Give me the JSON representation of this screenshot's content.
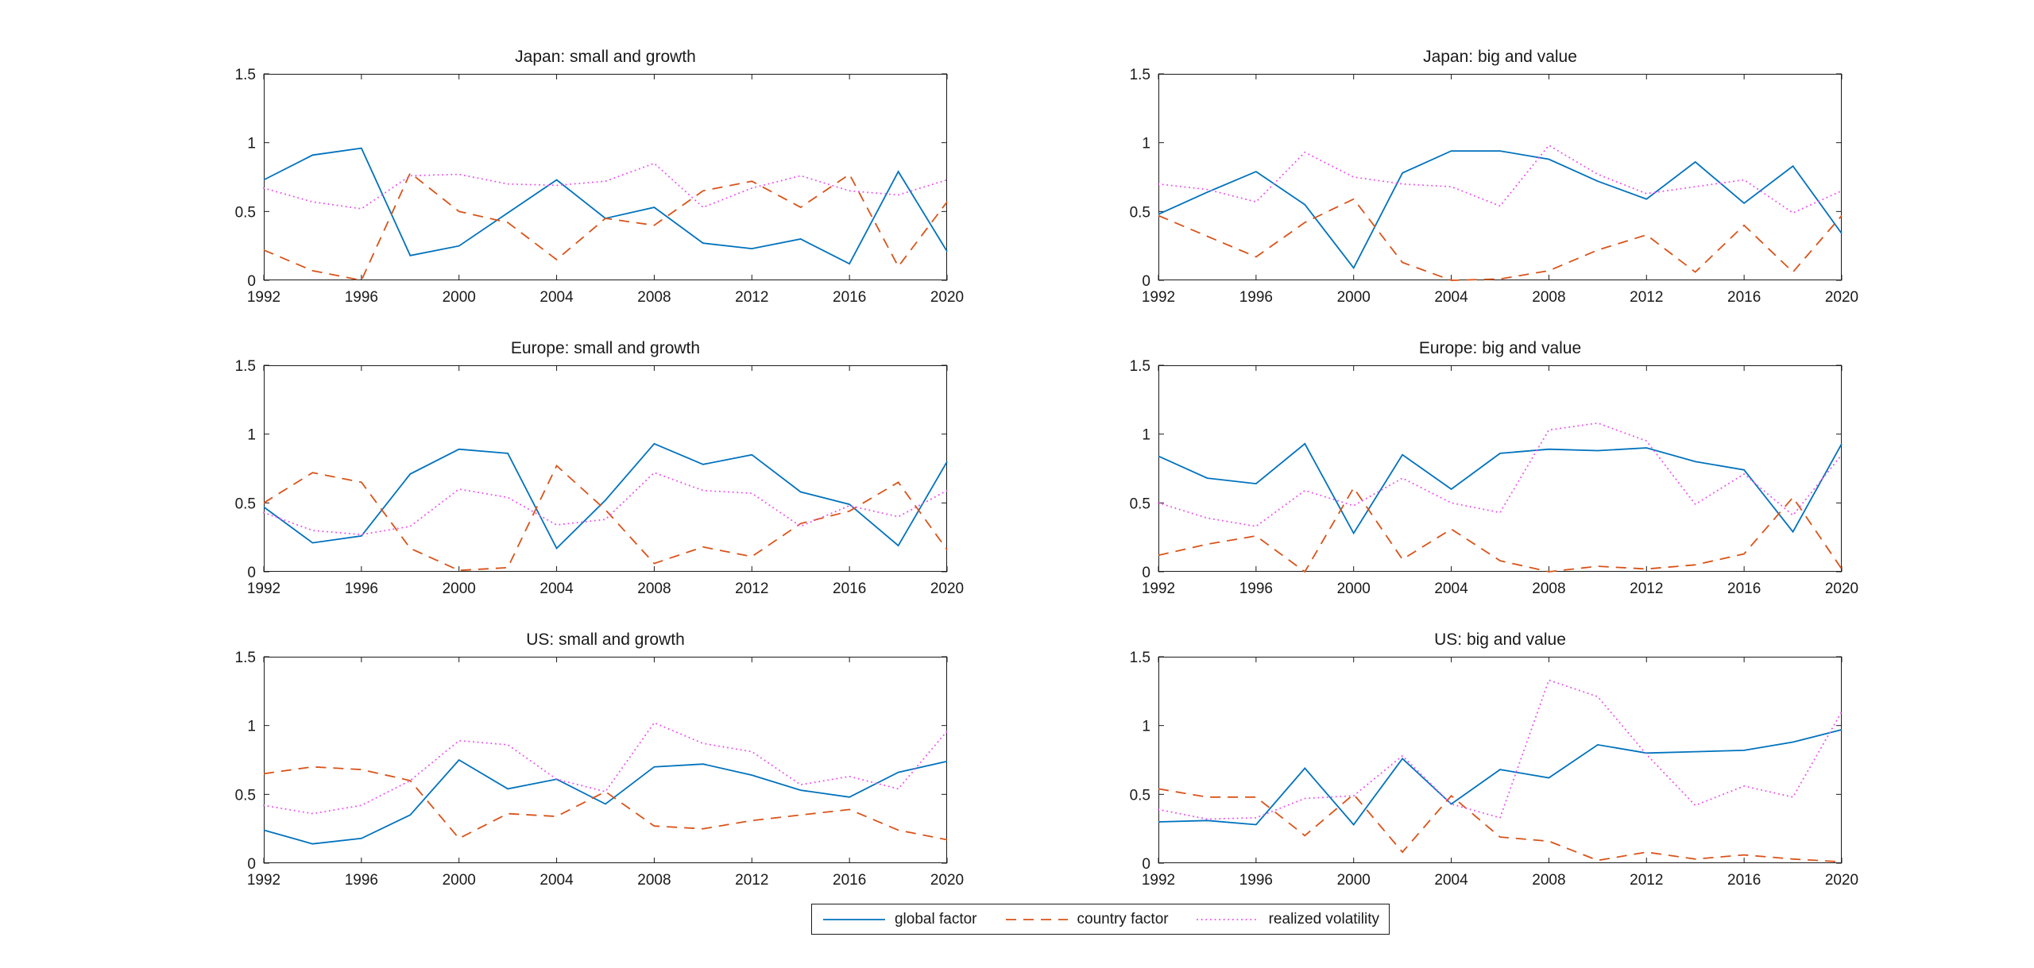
{
  "figure": {
    "background": "#ffffff",
    "axis_color": "#1a1a1a",
    "legend": {
      "items": [
        {
          "label": "global factor",
          "color": "#0072BD",
          "style": "solid"
        },
        {
          "label": "country factor",
          "color": "#D95319",
          "style": "dashed"
        },
        {
          "label": "realized volatility",
          "color": "#EE55EE",
          "style": "dotted"
        }
      ]
    }
  },
  "chart_data": [
    {
      "type": "line",
      "title": "Japan: small and growth",
      "x": [
        1992,
        1994,
        1996,
        1998,
        2000,
        2002,
        2004,
        2006,
        2008,
        2010,
        2012,
        2014,
        2016,
        2018,
        2020
      ],
      "xtick_labels": [
        "1992",
        "1996",
        "2000",
        "2004",
        "2008",
        "2012",
        "2016",
        "2020"
      ],
      "xticks": [
        1992,
        1996,
        2000,
        2004,
        2008,
        2012,
        2016,
        2020
      ],
      "ytick_labels": [
        "0",
        "0.5",
        "1",
        "1.5"
      ],
      "yticks": [
        0,
        0.5,
        1,
        1.5
      ],
      "xlim": [
        1992,
        2020
      ],
      "ylim": [
        0,
        1.5
      ],
      "grid": false,
      "series": [
        {
          "name": "global factor",
          "color": "#0072BD",
          "style": "solid",
          "values": [
            0.73,
            0.91,
            0.96,
            0.18,
            0.25,
            0.49,
            0.73,
            0.45,
            0.53,
            0.27,
            0.23,
            0.3,
            0.12,
            0.79,
            0.21
          ]
        },
        {
          "name": "country factor",
          "color": "#D95319",
          "style": "dashed",
          "values": [
            0.22,
            0.07,
            0.0,
            0.78,
            0.5,
            0.42,
            0.15,
            0.45,
            0.4,
            0.65,
            0.72,
            0.53,
            0.77,
            0.1,
            0.57
          ]
        },
        {
          "name": "realized volatility",
          "color": "#EE55EE",
          "style": "dotted",
          "values": [
            0.67,
            0.57,
            0.52,
            0.76,
            0.77,
            0.7,
            0.69,
            0.72,
            0.85,
            0.53,
            0.67,
            0.76,
            0.65,
            0.62,
            0.73
          ]
        }
      ]
    },
    {
      "type": "line",
      "title": "Japan: big and value",
      "x": [
        1992,
        1994,
        1996,
        1998,
        2000,
        2002,
        2004,
        2006,
        2008,
        2010,
        2012,
        2014,
        2016,
        2018,
        2020
      ],
      "xtick_labels": [
        "1992",
        "1996",
        "2000",
        "2004",
        "2008",
        "2012",
        "2016",
        "2020"
      ],
      "xticks": [
        1992,
        1996,
        2000,
        2004,
        2008,
        2012,
        2016,
        2020
      ],
      "ytick_labels": [
        "0",
        "0.5",
        "1",
        "1.5"
      ],
      "yticks": [
        0,
        0.5,
        1,
        1.5
      ],
      "xlim": [
        1992,
        2020
      ],
      "ylim": [
        0,
        1.5
      ],
      "grid": false,
      "series": [
        {
          "name": "global factor",
          "color": "#0072BD",
          "style": "solid",
          "values": [
            0.48,
            0.64,
            0.79,
            0.55,
            0.09,
            0.78,
            0.94,
            0.94,
            0.88,
            0.72,
            0.59,
            0.86,
            0.56,
            0.83,
            0.34
          ]
        },
        {
          "name": "country factor",
          "color": "#D95319",
          "style": "dashed",
          "values": [
            0.47,
            0.32,
            0.17,
            0.42,
            0.59,
            0.13,
            0.0,
            0.01,
            0.07,
            0.22,
            0.33,
            0.06,
            0.4,
            0.06,
            0.47
          ]
        },
        {
          "name": "realized volatility",
          "color": "#EE55EE",
          "style": "dotted",
          "values": [
            0.7,
            0.66,
            0.57,
            0.93,
            0.75,
            0.7,
            0.68,
            0.54,
            0.98,
            0.77,
            0.63,
            0.68,
            0.73,
            0.49,
            0.65
          ]
        }
      ]
    },
    {
      "type": "line",
      "title": "Europe: small and growth",
      "x": [
        1992,
        1994,
        1996,
        1998,
        2000,
        2002,
        2004,
        2006,
        2008,
        2010,
        2012,
        2014,
        2016,
        2018,
        2020
      ],
      "xtick_labels": [
        "1992",
        "1996",
        "2000",
        "2004",
        "2008",
        "2012",
        "2016",
        "2020"
      ],
      "xticks": [
        1992,
        1996,
        2000,
        2004,
        2008,
        2012,
        2016,
        2020
      ],
      "ytick_labels": [
        "0",
        "0.5",
        "1",
        "1.5"
      ],
      "yticks": [
        0,
        0.5,
        1,
        1.5
      ],
      "xlim": [
        1992,
        2020
      ],
      "ylim": [
        0,
        1.5
      ],
      "grid": false,
      "series": [
        {
          "name": "global factor",
          "color": "#0072BD",
          "style": "solid",
          "values": [
            0.47,
            0.21,
            0.26,
            0.71,
            0.89,
            0.86,
            0.17,
            0.52,
            0.93,
            0.78,
            0.85,
            0.58,
            0.49,
            0.19,
            0.8
          ]
        },
        {
          "name": "country factor",
          "color": "#D95319",
          "style": "dashed",
          "values": [
            0.5,
            0.72,
            0.65,
            0.17,
            0.01,
            0.03,
            0.77,
            0.45,
            0.06,
            0.18,
            0.11,
            0.35,
            0.44,
            0.65,
            0.16
          ]
        },
        {
          "name": "realized volatility",
          "color": "#EE55EE",
          "style": "dotted",
          "values": [
            0.43,
            0.3,
            0.27,
            0.33,
            0.6,
            0.54,
            0.34,
            0.38,
            0.72,
            0.59,
            0.57,
            0.33,
            0.48,
            0.4,
            0.59
          ]
        }
      ]
    },
    {
      "type": "line",
      "title": "Europe: big and value",
      "x": [
        1992,
        1994,
        1996,
        1998,
        2000,
        2002,
        2004,
        2006,
        2008,
        2010,
        2012,
        2014,
        2016,
        2018,
        2020
      ],
      "xtick_labels": [
        "1992",
        "1996",
        "2000",
        "2004",
        "2008",
        "2012",
        "2016",
        "2020"
      ],
      "xticks": [
        1992,
        1996,
        2000,
        2004,
        2008,
        2012,
        2016,
        2020
      ],
      "ytick_labels": [
        "0",
        "0.5",
        "1",
        "1.5"
      ],
      "yticks": [
        0,
        0.5,
        1,
        1.5
      ],
      "xlim": [
        1992,
        2020
      ],
      "ylim": [
        0,
        1.5
      ],
      "grid": false,
      "series": [
        {
          "name": "global factor",
          "color": "#0072BD",
          "style": "solid",
          "values": [
            0.84,
            0.68,
            0.64,
            0.93,
            0.28,
            0.85,
            0.6,
            0.86,
            0.89,
            0.88,
            0.9,
            0.8,
            0.74,
            0.29,
            0.93
          ]
        },
        {
          "name": "country factor",
          "color": "#D95319",
          "style": "dashed",
          "values": [
            0.12,
            0.2,
            0.26,
            0.0,
            0.61,
            0.09,
            0.31,
            0.08,
            0.0,
            0.04,
            0.02,
            0.05,
            0.13,
            0.54,
            0.02
          ]
        },
        {
          "name": "realized volatility",
          "color": "#EE55EE",
          "style": "dotted",
          "values": [
            0.5,
            0.39,
            0.33,
            0.59,
            0.48,
            0.68,
            0.5,
            0.43,
            1.03,
            1.08,
            0.95,
            0.49,
            0.71,
            0.41,
            0.85
          ]
        }
      ]
    },
    {
      "type": "line",
      "title": "US: small and growth",
      "x": [
        1992,
        1994,
        1996,
        1998,
        2000,
        2002,
        2004,
        2006,
        2008,
        2010,
        2012,
        2014,
        2016,
        2018,
        2020
      ],
      "xtick_labels": [
        "1992",
        "1996",
        "2000",
        "2004",
        "2008",
        "2012",
        "2016",
        "2020"
      ],
      "xticks": [
        1992,
        1996,
        2000,
        2004,
        2008,
        2012,
        2016,
        2020
      ],
      "ytick_labels": [
        "0",
        "0.5",
        "1",
        "1.5"
      ],
      "yticks": [
        0,
        0.5,
        1,
        1.5
      ],
      "xlim": [
        1992,
        2020
      ],
      "ylim": [
        0,
        1.5
      ],
      "grid": false,
      "series": [
        {
          "name": "global factor",
          "color": "#0072BD",
          "style": "solid",
          "values": [
            0.24,
            0.14,
            0.18,
            0.35,
            0.75,
            0.54,
            0.61,
            0.43,
            0.7,
            0.72,
            0.64,
            0.53,
            0.48,
            0.66,
            0.74
          ]
        },
        {
          "name": "country factor",
          "color": "#D95319",
          "style": "dashed",
          "values": [
            0.65,
            0.7,
            0.68,
            0.6,
            0.18,
            0.36,
            0.34,
            0.52,
            0.27,
            0.25,
            0.31,
            0.35,
            0.39,
            0.24,
            0.17
          ]
        },
        {
          "name": "realized volatility",
          "color": "#EE55EE",
          "style": "dotted",
          "values": [
            0.42,
            0.36,
            0.42,
            0.6,
            0.89,
            0.86,
            0.61,
            0.52,
            1.02,
            0.87,
            0.81,
            0.57,
            0.63,
            0.54,
            0.96
          ]
        }
      ]
    },
    {
      "type": "line",
      "title": "US: big and value",
      "x": [
        1992,
        1994,
        1996,
        1998,
        2000,
        2002,
        2004,
        2006,
        2008,
        2010,
        2012,
        2014,
        2016,
        2018,
        2020
      ],
      "xtick_labels": [
        "1992",
        "1996",
        "2000",
        "2004",
        "2008",
        "2012",
        "2016",
        "2020"
      ],
      "xticks": [
        1992,
        1996,
        2000,
        2004,
        2008,
        2012,
        2016,
        2020
      ],
      "ytick_labels": [
        "0",
        "0.5",
        "1",
        "1.5"
      ],
      "yticks": [
        0,
        0.5,
        1,
        1.5
      ],
      "xlim": [
        1992,
        2020
      ],
      "ylim": [
        0,
        1.5
      ],
      "grid": false,
      "series": [
        {
          "name": "global factor",
          "color": "#0072BD",
          "style": "solid",
          "values": [
            0.3,
            0.31,
            0.28,
            0.69,
            0.28,
            0.76,
            0.43,
            0.68,
            0.62,
            0.86,
            0.8,
            0.81,
            0.82,
            0.88,
            0.97
          ]
        },
        {
          "name": "country factor",
          "color": "#D95319",
          "style": "dashed",
          "values": [
            0.54,
            0.48,
            0.48,
            0.2,
            0.5,
            0.08,
            0.49,
            0.19,
            0.16,
            0.02,
            0.08,
            0.03,
            0.06,
            0.03,
            0.01
          ]
        },
        {
          "name": "realized volatility",
          "color": "#EE55EE",
          "style": "dotted",
          "values": [
            0.39,
            0.32,
            0.33,
            0.47,
            0.49,
            0.78,
            0.43,
            0.33,
            1.33,
            1.21,
            0.79,
            0.42,
            0.56,
            0.48,
            1.1
          ]
        }
      ]
    }
  ]
}
